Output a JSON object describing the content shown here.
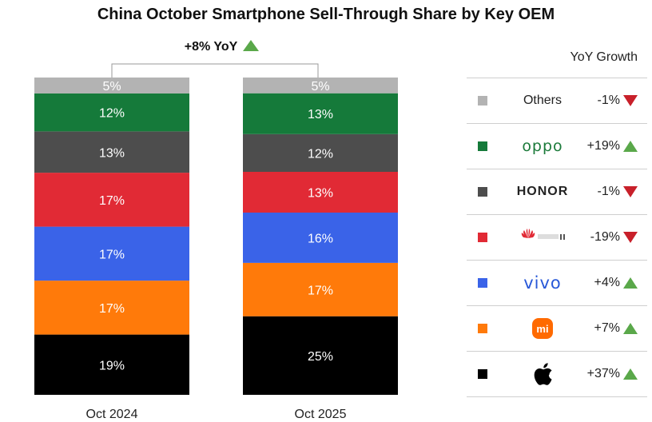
{
  "chart_data": {
    "type": "bar",
    "stacked": true,
    "title": "China October Smartphone Sell-Through Share by Key OEM",
    "categories": [
      "Oct 2024",
      "Oct 2025"
    ],
    "ylim": [
      0,
      100
    ],
    "annotation": "+8% YoY",
    "series": [
      {
        "name": "Apple",
        "color": "#000000",
        "values": [
          19,
          25
        ],
        "labels": [
          "19%",
          "25%"
        ]
      },
      {
        "name": "Xiaomi",
        "color": "#ff7a0a",
        "values": [
          17,
          17
        ],
        "labels": [
          "17%",
          "17%"
        ]
      },
      {
        "name": "vivo",
        "color": "#3a63e8",
        "values": [
          17,
          16
        ],
        "labels": [
          "17%",
          "16%"
        ]
      },
      {
        "name": "Huawei",
        "color": "#e12a35",
        "values": [
          17,
          13
        ],
        "labels": [
          "17%",
          "13%"
        ]
      },
      {
        "name": "HONOR",
        "color": "#4d4d4d",
        "values": [
          13,
          12
        ],
        "labels": [
          "13%",
          "12%"
        ]
      },
      {
        "name": "OPPO",
        "color": "#157a3a",
        "values": [
          12,
          13
        ],
        "labels": [
          "12%",
          "13%"
        ]
      },
      {
        "name": "Others",
        "color": "#b3b3b3",
        "values": [
          5,
          5
        ],
        "labels": [
          "5%",
          "5%"
        ]
      }
    ],
    "legend": {
      "title": "YoY Growth",
      "placement": "right",
      "rows": [
        {
          "brand": "Others",
          "brand_text": "Others",
          "color": "#b3b3b3",
          "yoy": "-1%",
          "direction": "down"
        },
        {
          "brand": "OPPO",
          "brand_text": "oppo",
          "color": "#157a3a",
          "yoy": "+19%",
          "direction": "up"
        },
        {
          "brand": "HONOR",
          "brand_text": "HONOR",
          "color": "#4d4d4d",
          "yoy": "-1%",
          "direction": "down"
        },
        {
          "brand": "Huawei",
          "brand_text": "",
          "color": "#e12a35",
          "yoy": "-19%",
          "direction": "down"
        },
        {
          "brand": "vivo",
          "brand_text": "vivo",
          "color": "#3a63e8",
          "yoy": "+4%",
          "direction": "up"
        },
        {
          "brand": "Xiaomi",
          "brand_text": "mi",
          "color": "#ff7a0a",
          "yoy": "+7%",
          "direction": "up"
        },
        {
          "brand": "Apple",
          "brand_text": "",
          "color": "#000000",
          "yoy": "+37%",
          "direction": "up"
        }
      ]
    }
  },
  "colors": {
    "up_arrow": "#5aa84a",
    "down_arrow": "#c8202a"
  }
}
